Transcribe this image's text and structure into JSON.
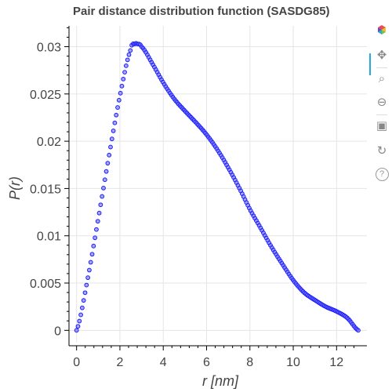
{
  "chart_data": {
    "type": "scatter",
    "title": "Pair distance distribution function (SASDG85)",
    "xlabel": "r [nm]",
    "ylabel": "P(r)",
    "xlim": [
      -0.35,
      13.4
    ],
    "ylim": [
      -0.0013,
      0.0322
    ],
    "x_ticks": [
      0,
      2,
      4,
      6,
      8,
      10,
      12
    ],
    "y_ticks": [
      0,
      0.005,
      0.01,
      0.015,
      0.02,
      0.025,
      0.03
    ],
    "x_tick_labels": [
      "0",
      "2",
      "4",
      "6",
      "8",
      "10",
      "12"
    ],
    "y_tick_labels": [
      "0",
      "0.005",
      "0.01",
      "0.015",
      "0.02",
      "0.025",
      "0.03"
    ],
    "grid": true,
    "legend": "none",
    "marker_color": "#1a1aff",
    "r_max": 13.0,
    "n_points": 200,
    "profile": [
      [
        0.0,
        0.0
      ],
      [
        0.5,
        0.0053
      ],
      [
        1.0,
        0.0118
      ],
      [
        1.5,
        0.0185
      ],
      [
        2.0,
        0.0248
      ],
      [
        2.5,
        0.0297
      ],
      [
        2.7,
        0.0303
      ],
      [
        2.8,
        0.0303
      ],
      [
        3.0,
        0.03
      ],
      [
        3.5,
        0.0282
      ],
      [
        4.0,
        0.0262
      ],
      [
        4.5,
        0.0245
      ],
      [
        5.0,
        0.0232
      ],
      [
        5.5,
        0.022
      ],
      [
        6.0,
        0.0207
      ],
      [
        6.5,
        0.0191
      ],
      [
        7.0,
        0.0172
      ],
      [
        7.5,
        0.0151
      ],
      [
        8.0,
        0.0128
      ],
      [
        8.5,
        0.0108
      ],
      [
        9.0,
        0.0088
      ],
      [
        9.5,
        0.007
      ],
      [
        10.0,
        0.0053
      ],
      [
        10.5,
        0.004
      ],
      [
        11.0,
        0.0032
      ],
      [
        11.5,
        0.0025
      ],
      [
        12.0,
        0.002
      ],
      [
        12.5,
        0.0013
      ],
      [
        13.0,
        0.0
      ]
    ]
  },
  "toolbar": {
    "items": [
      {
        "name": "bokeh-logo-icon",
        "glyph": "",
        "interactable": false
      },
      {
        "name": "pan-icon",
        "glyph": "✥",
        "interactable": true,
        "active": true
      },
      {
        "name": "box-zoom-icon",
        "glyph": "⌕",
        "interactable": true
      },
      {
        "name": "wheel-zoom-icon",
        "glyph": "⊖",
        "interactable": true
      },
      {
        "name": "save-icon",
        "glyph": "▣",
        "interactable": true
      },
      {
        "name": "reset-icon",
        "glyph": "↻",
        "interactable": true
      },
      {
        "name": "help-icon",
        "glyph": "?",
        "interactable": true
      }
    ]
  }
}
